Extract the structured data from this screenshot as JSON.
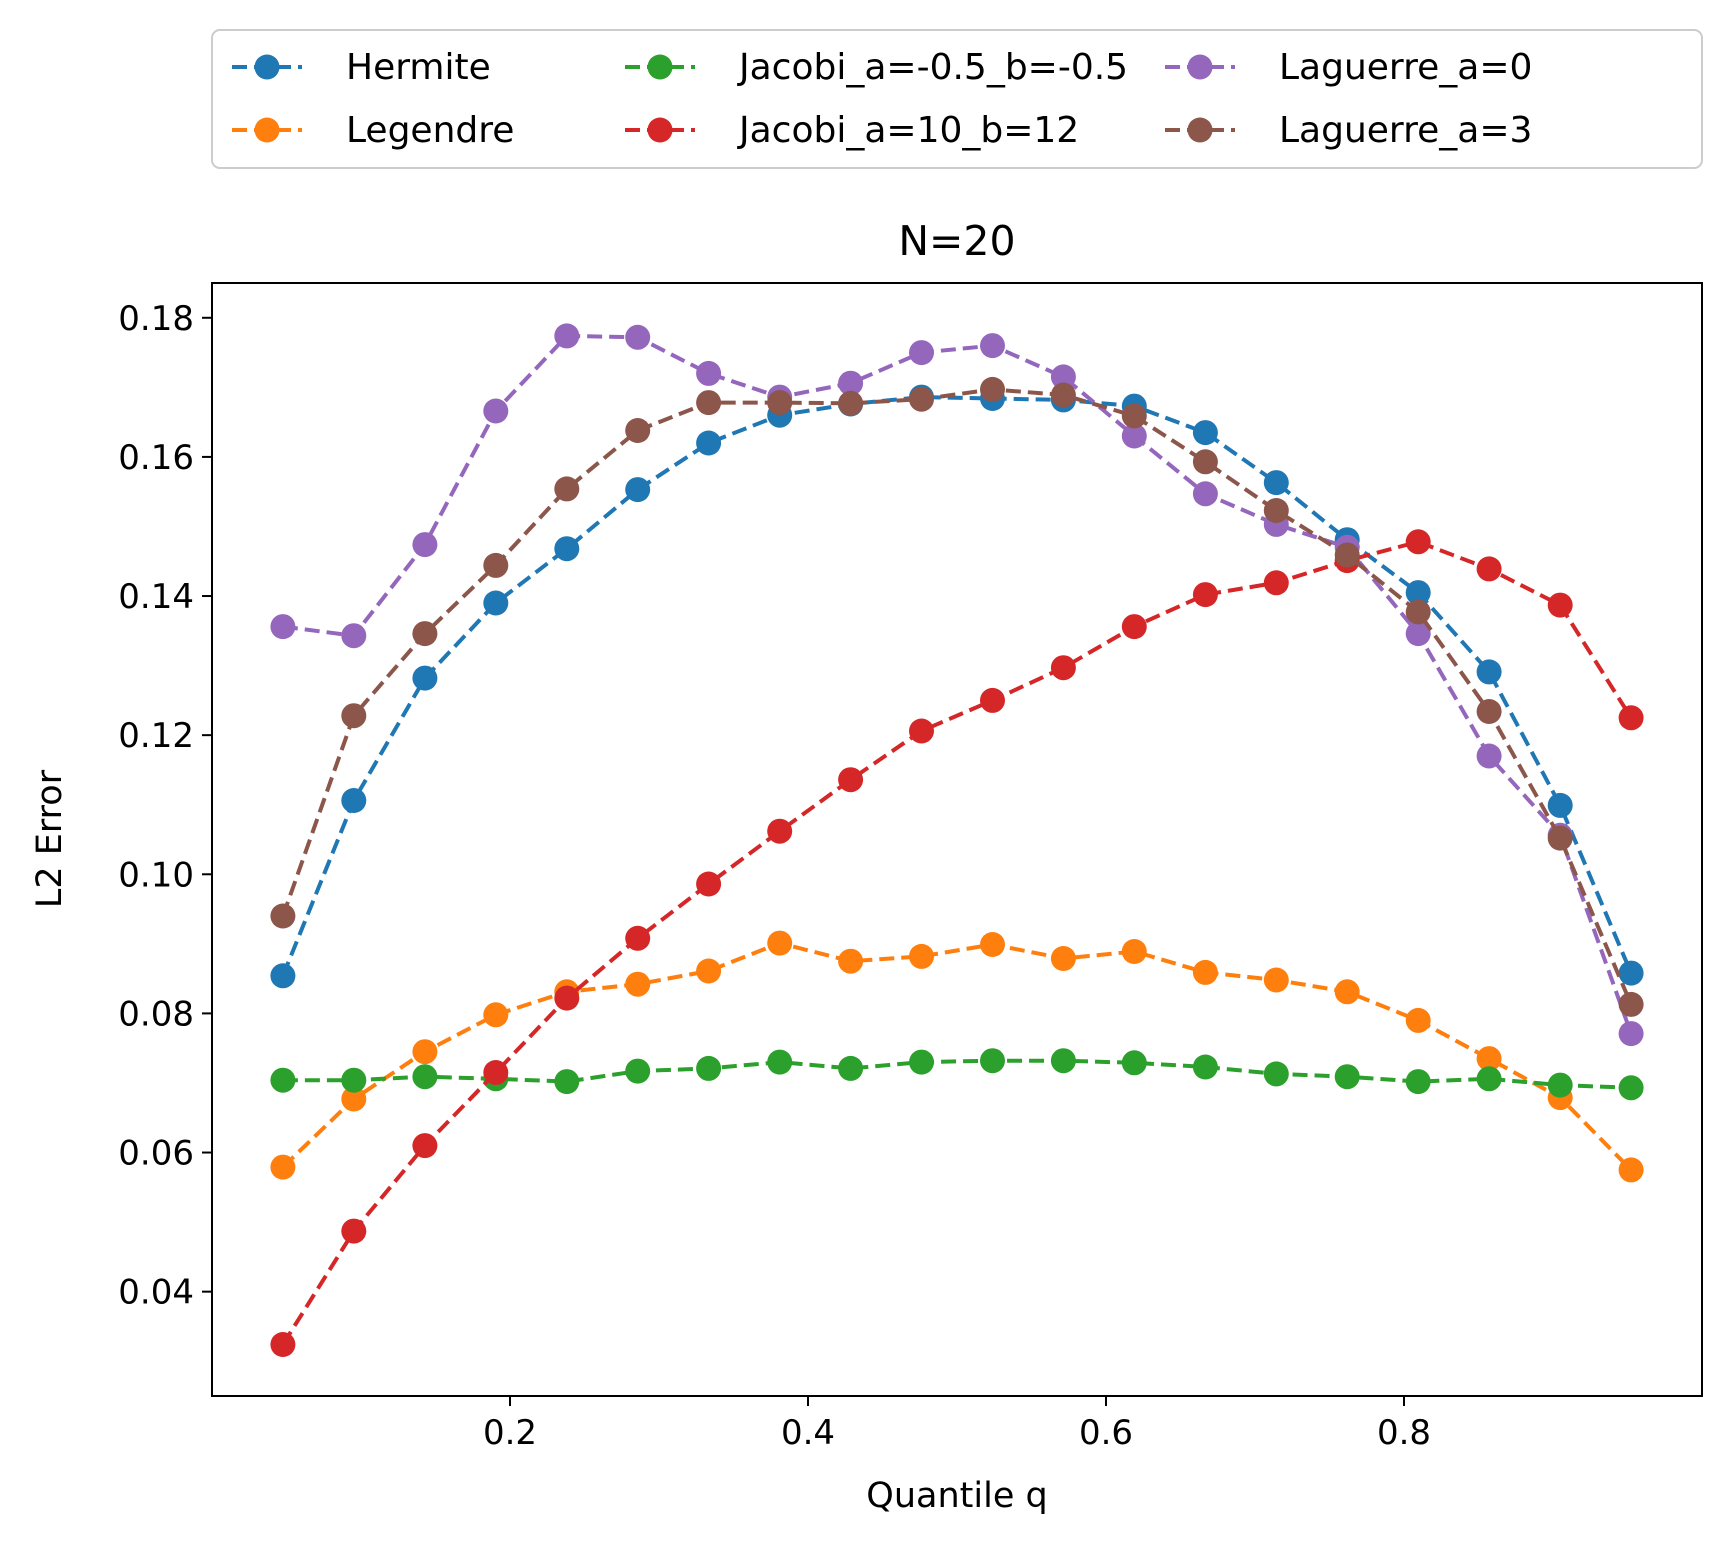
{
  "chart_data": {
    "type": "line",
    "title": "N=20",
    "xlabel": "Quantile q",
    "ylabel": "L2 Error",
    "xlim": [
      0.0,
      1.0
    ],
    "ylim": [
      0.025,
      0.185
    ],
    "xticks": [
      0.2,
      0.4,
      0.6,
      0.8
    ],
    "xtick_labels": [
      "0.2",
      "0.4",
      "0.6",
      "0.8"
    ],
    "yticks": [
      0.04,
      0.06,
      0.08,
      0.1,
      0.12,
      0.14,
      0.16,
      0.18
    ],
    "ytick_labels": [
      "0.04",
      "0.06",
      "0.08",
      "0.10",
      "0.12",
      "0.14",
      "0.16",
      "0.18"
    ],
    "grid": false,
    "legend_position": "top, above the plot, 3 columns",
    "line_style": "dashed with circle markers",
    "x": [
      0.0476,
      0.0952,
      0.1429,
      0.1905,
      0.2381,
      0.2857,
      0.3333,
      0.381,
      0.4286,
      0.4762,
      0.5238,
      0.5714,
      0.619,
      0.6667,
      0.7143,
      0.7619,
      0.8095,
      0.8571,
      0.9048,
      0.9524
    ],
    "series": [
      {
        "name": "Hermite",
        "color": "#1f77b4",
        "values": [
          0.0854,
          0.1106,
          0.1282,
          0.139,
          0.1468,
          0.1553,
          0.162,
          0.166,
          0.1676,
          0.1686,
          0.1684,
          0.1682,
          0.1673,
          0.1635,
          0.1563,
          0.1481,
          0.1405,
          0.1291,
          0.1099,
          0.0858
        ]
      },
      {
        "name": "Legendre",
        "color": "#ff7f0e",
        "values": [
          0.0579,
          0.0677,
          0.0745,
          0.0798,
          0.0831,
          0.0842,
          0.0861,
          0.0901,
          0.0875,
          0.0882,
          0.0899,
          0.0879,
          0.0889,
          0.0859,
          0.0848,
          0.0831,
          0.079,
          0.0735,
          0.0679,
          0.0575
        ]
      },
      {
        "name": "Jacobi_a=-0.5_b=-0.5",
        "color": "#2ca02c",
        "values": [
          0.0704,
          0.0704,
          0.0709,
          0.0706,
          0.0702,
          0.0717,
          0.0721,
          0.073,
          0.0721,
          0.073,
          0.0732,
          0.0732,
          0.0729,
          0.0723,
          0.0713,
          0.0709,
          0.0702,
          0.0706,
          0.0697,
          0.0693
        ]
      },
      {
        "name": "Jacobi_a=10_b=12",
        "color": "#d62728",
        "values": [
          0.0324,
          0.0487,
          0.061,
          0.0715,
          0.0822,
          0.0908,
          0.0986,
          0.1062,
          0.1136,
          0.1206,
          0.125,
          0.1297,
          0.1356,
          0.1402,
          0.1419,
          0.1451,
          0.1478,
          0.1439,
          0.1387,
          0.1225
        ]
      },
      {
        "name": "Laguerre_a=0",
        "color": "#9467bd",
        "values": [
          0.1356,
          0.1343,
          0.1474,
          0.1666,
          0.1774,
          0.1772,
          0.172,
          0.1686,
          0.1706,
          0.175,
          0.176,
          0.1715,
          0.163,
          0.1547,
          0.1503,
          0.147,
          0.1346,
          0.117,
          0.1056,
          0.0771
        ]
      },
      {
        "name": "Laguerre_a=3",
        "color": "#8c564b",
        "values": [
          0.094,
          0.1228,
          0.1346,
          0.1444,
          0.1554,
          0.1638,
          0.1678,
          0.1678,
          0.1677,
          0.1683,
          0.1697,
          0.1689,
          0.1659,
          0.1593,
          0.1523,
          0.1459,
          0.1377,
          0.1234,
          0.1052,
          0.0813
        ]
      }
    ]
  }
}
